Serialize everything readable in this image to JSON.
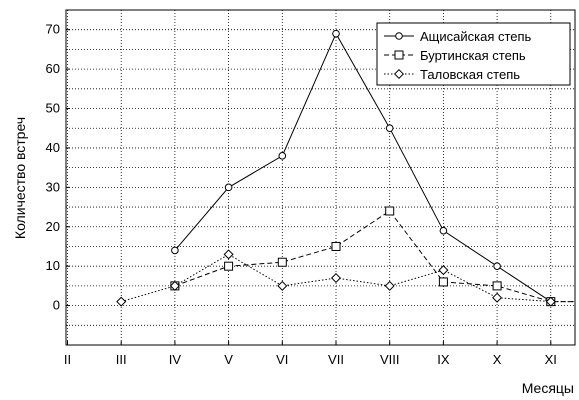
{
  "chart_data": {
    "type": "line",
    "title": "",
    "xlabel": "Месяцы",
    "ylabel": "Количество встреч",
    "categories": [
      "II",
      "III",
      "IV",
      "V",
      "VI",
      "VII",
      "VIII",
      "IX",
      "X",
      "XI"
    ],
    "ylim": [
      -10,
      75
    ],
    "yticks": [
      0,
      10,
      20,
      30,
      40,
      50,
      60,
      70
    ],
    "grid": true,
    "legend_position": "top-right",
    "series": [
      {
        "name": "Ащисайская степь",
        "marker": "circle",
        "line_style": "solid",
        "color": "#000000",
        "values": [
          null,
          null,
          14,
          30,
          38,
          69,
          45,
          19,
          10,
          1
        ]
      },
      {
        "name": "Буртинская степь",
        "marker": "square",
        "line_style": "dashed",
        "color": "#000000",
        "values": [
          null,
          null,
          5,
          10,
          11,
          15,
          24,
          6,
          5,
          1
        ]
      },
      {
        "name": "Таловская степь",
        "marker": "diamond",
        "line_style": "dotted",
        "color": "#000000",
        "values": [
          null,
          1,
          5,
          13,
          5,
          7,
          5,
          9,
          2,
          1
        ]
      }
    ]
  }
}
